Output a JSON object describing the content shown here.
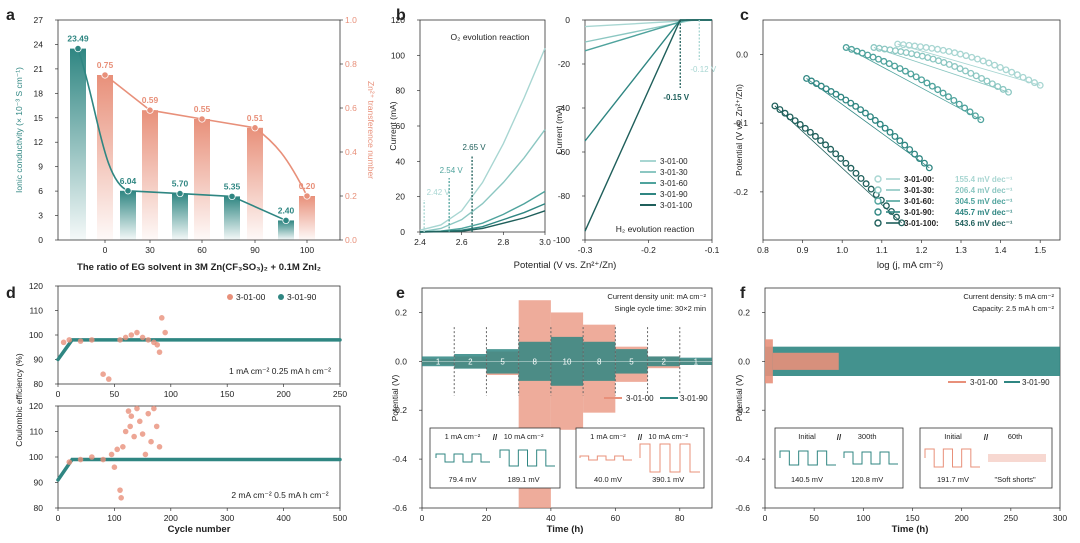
{
  "colors": {
    "teal": "#2f8682",
    "dark": "#1f5f5b",
    "salmon": "#e8907a",
    "mid": "#4fa39d",
    "light": "#8cc7c2",
    "lighter": "#a8d6d2"
  },
  "chart_data": [
    {
      "id": "a",
      "type": "bar",
      "label": "a",
      "xlabel": "The ratio of EG solvent in 3M Zn(CF₃SO₃)₂ + 0.1M ZnI₂",
      "ylabel": "Ionic conductivity (× 10⁻³ S cm⁻¹)",
      "y2label": "Zn²⁺ transference number",
      "categories": [
        "0",
        "30",
        "60",
        "90",
        "100"
      ],
      "xticks": [
        "0",
        "30",
        "60",
        "90",
        "100"
      ],
      "ylim": [
        0,
        27
      ],
      "yticks": [
        0,
        3,
        6,
        9,
        12,
        15,
        18,
        21,
        24,
        27
      ],
      "y2lim": [
        0,
        1.0
      ],
      "y2ticks": [
        "0.0",
        "0.2",
        "0.4",
        "0.6",
        "0.8",
        "1.0"
      ],
      "conductivity": [
        23.49,
        6.04,
        5.7,
        5.35,
        2.4
      ],
      "conductivity_labels": [
        "23.49",
        "6.04",
        "5.70",
        "5.35",
        "2.40"
      ],
      "transference": [
        0.75,
        0.59,
        0.55,
        0.51,
        0.2
      ],
      "transference_labels": [
        "0.75",
        "0.59",
        "0.55",
        "0.51",
        "0.20"
      ]
    },
    {
      "id": "b1",
      "type": "line",
      "label": "b",
      "annotation": "O₂ evolution reaction",
      "xlabel": "Potential (V vs. Zn²⁺/Zn)",
      "ylabel": "Current (mA)",
      "xlim": [
        2.4,
        3.0
      ],
      "xticks": [
        "2.4",
        "2.6",
        "2.8",
        "3.0"
      ],
      "ylim": [
        0,
        120
      ],
      "yticks": [
        0,
        20,
        40,
        60,
        80,
        100,
        120
      ],
      "onsets": [
        {
          "v": 2.42,
          "label": "2.42 V"
        },
        {
          "v": 2.54,
          "label": "2.54 V"
        },
        {
          "v": 2.65,
          "label": "2.65 V"
        }
      ],
      "series": [
        {
          "name": "3-01-00",
          "x": [
            2.4,
            2.5,
            2.6,
            2.7,
            2.8,
            2.9,
            3.0
          ],
          "y": [
            1,
            4,
            12,
            28,
            50,
            76,
            104
          ]
        },
        {
          "name": "3-01-30",
          "x": [
            2.4,
            2.5,
            2.6,
            2.7,
            2.8,
            2.9,
            3.0
          ],
          "y": [
            0,
            2,
            7,
            16,
            28,
            42,
            58
          ]
        },
        {
          "name": "3-01-60",
          "x": [
            2.4,
            2.5,
            2.6,
            2.7,
            2.8,
            2.9,
            3.0
          ],
          "y": [
            0,
            0.5,
            2,
            5,
            10,
            16,
            23
          ]
        },
        {
          "name": "3-01-90",
          "x": [
            2.4,
            2.5,
            2.6,
            2.7,
            2.8,
            2.9,
            3.0
          ],
          "y": [
            0,
            0.3,
            1,
            3,
            7,
            11,
            16
          ]
        },
        {
          "name": "3-01-100",
          "x": [
            2.4,
            2.5,
            2.6,
            2.7,
            2.8,
            2.9,
            3.0
          ],
          "y": [
            0,
            0.2,
            0.5,
            2,
            5,
            8,
            12
          ]
        }
      ]
    },
    {
      "id": "b2",
      "type": "line",
      "annotation": "H₂ evolution reaction",
      "xlabel": "",
      "ylabel": "Current (mA)",
      "xlim": [
        -0.3,
        -0.1
      ],
      "xticks": [
        "-0.3",
        "-0.2",
        "-0.1"
      ],
      "ylim": [
        -100,
        0
      ],
      "yticks": [
        0,
        -20,
        -40,
        -60,
        -80,
        -100
      ],
      "onsets": [
        {
          "v": -0.12,
          "label": "-0.12 V"
        },
        {
          "v": -0.15,
          "label": "-0.15 V"
        }
      ],
      "legend": [
        "3-01-00",
        "3-01-30",
        "3-01-60",
        "3-01-90",
        "3-01-100"
      ],
      "series": [
        {
          "name": "3-01-00",
          "x": [
            -0.3,
            -0.12,
            -0.1
          ],
          "y": [
            -3,
            0,
            0
          ]
        },
        {
          "name": "3-01-30",
          "x": [
            -0.3,
            -0.13,
            -0.1
          ],
          "y": [
            -10,
            0,
            0
          ]
        },
        {
          "name": "3-01-60",
          "x": [
            -0.3,
            -0.14,
            -0.1
          ],
          "y": [
            -14,
            0,
            0
          ]
        },
        {
          "name": "3-01-90",
          "x": [
            -0.3,
            -0.15,
            -0.1
          ],
          "y": [
            -55,
            0,
            0
          ]
        },
        {
          "name": "3-01-100",
          "x": [
            -0.3,
            -0.15,
            -0.1
          ],
          "y": [
            -96,
            0,
            0
          ]
        }
      ]
    },
    {
      "id": "c",
      "type": "scatter",
      "label": "c",
      "xlabel": "log (j, mA cm⁻²)",
      "ylabel": "Potential (V vs. Zn²⁺/Zn)",
      "xlim": [
        0.8,
        1.55
      ],
      "xticks": [
        "0.8",
        "0.9",
        "1.0",
        "1.1",
        "1.2",
        "1.3",
        "1.4",
        "1.5"
      ],
      "ylim": [
        -0.27,
        0.05
      ],
      "yticks": [
        "0.0",
        "-0.1",
        "-0.2"
      ],
      "legend": [
        {
          "name": "3-01-00:",
          "slope": "155.4 mV dec⁻¹"
        },
        {
          "name": "3-01-30:",
          "slope": "206.4 mV dec⁻¹"
        },
        {
          "name": "3-01-60:",
          "slope": "304.5 mV dec⁻¹"
        },
        {
          "name": "3-01-90:",
          "slope": "445.7 mV dec⁻¹"
        },
        {
          "name": "3-01-100:",
          "slope": "543.6 mV dec⁻¹"
        }
      ],
      "series": [
        {
          "name": "3-01-00",
          "x": [
            1.14,
            1.5
          ],
          "y": [
            0.015,
            -0.045
          ]
        },
        {
          "name": "3-01-30",
          "x": [
            1.08,
            1.42
          ],
          "y": [
            0.01,
            -0.055
          ]
        },
        {
          "name": "3-01-60",
          "x": [
            1.01,
            1.35
          ],
          "y": [
            0.01,
            -0.095
          ]
        },
        {
          "name": "3-01-90",
          "x": [
            0.91,
            1.22
          ],
          "y": [
            -0.035,
            -0.165
          ]
        },
        {
          "name": "3-01-100",
          "x": [
            0.83,
            1.15
          ],
          "y": [
            -0.075,
            -0.245
          ]
        }
      ]
    },
    {
      "id": "d",
      "type": "scatter",
      "label": "d",
      "xlabel": "Cycle number",
      "ylabel": "Coulombic efficiency (%)",
      "legend": [
        "3-01-00",
        "3-01-90"
      ],
      "top": {
        "caption": "1 mA cm⁻²  0.25 mA h cm⁻²",
        "xlim": [
          0,
          250
        ],
        "xticks": [
          "0",
          "50",
          "100",
          "150",
          "200",
          "250"
        ],
        "ylim": [
          80,
          120
        ],
        "yticks": [
          "80",
          "90",
          "100",
          "110",
          "120"
        ],
        "salmon_points": [
          [
            5,
            97
          ],
          [
            10,
            98
          ],
          [
            20,
            97.5
          ],
          [
            30,
            98
          ],
          [
            40,
            84
          ],
          [
            45,
            82
          ],
          [
            55,
            98
          ],
          [
            60,
            99
          ],
          [
            65,
            100
          ],
          [
            70,
            101
          ],
          [
            75,
            99
          ],
          [
            80,
            98
          ],
          [
            85,
            97
          ],
          [
            88,
            96
          ],
          [
            90,
            93
          ],
          [
            92,
            107
          ],
          [
            95,
            101
          ]
        ],
        "teal_band": {
          "start": 0,
          "end": 250,
          "value": 98
        }
      },
      "bottom": {
        "caption": "2 mA cm⁻²  0.5 mA h cm⁻²",
        "xlim": [
          0,
          500
        ],
        "xticks": [
          "0",
          "100",
          "200",
          "300",
          "400",
          "500"
        ],
        "ylim": [
          80,
          120
        ],
        "yticks": [
          "80",
          "90",
          "100",
          "110",
          "120"
        ],
        "salmon_points": [
          [
            20,
            98
          ],
          [
            40,
            99
          ],
          [
            60,
            100
          ],
          [
            80,
            99
          ],
          [
            95,
            101
          ],
          [
            100,
            96
          ],
          [
            105,
            103
          ],
          [
            110,
            87
          ],
          [
            112,
            84
          ],
          [
            115,
            104
          ],
          [
            120,
            110
          ],
          [
            125,
            118
          ],
          [
            128,
            112
          ],
          [
            130,
            116
          ],
          [
            135,
            108
          ],
          [
            140,
            119
          ],
          [
            145,
            114
          ],
          [
            150,
            109
          ],
          [
            155,
            101
          ],
          [
            160,
            117
          ],
          [
            165,
            106
          ],
          [
            170,
            119
          ],
          [
            175,
            112
          ],
          [
            180,
            104
          ]
        ],
        "teal_band": {
          "start": 0,
          "end": 500,
          "value": 99
        }
      }
    },
    {
      "id": "e",
      "type": "line",
      "label": "e",
      "xlabel": "Time (h)",
      "ylabel": "Potential (V)",
      "xlim": [
        0,
        90
      ],
      "xticks": [
        "0",
        "20",
        "40",
        "60",
        "80"
      ],
      "ylim": [
        -0.6,
        0.3
      ],
      "yticks": [
        "0.2",
        "0.0",
        "-0.2",
        "-0.4",
        "-0.6"
      ],
      "notes": [
        "Current density unit: mA cm⁻²",
        "Single cycle time: 30×2 min"
      ],
      "steps": [
        "1",
        "2",
        "5",
        "8",
        "10",
        "8",
        "5",
        "2",
        "1"
      ],
      "legend": [
        "3-01-00",
        "3-01-90"
      ],
      "inset1": {
        "left_label": "1 mA cm⁻²",
        "right_label": "10 mA cm⁻²",
        "left_value": "79.4 mV",
        "right_value": "189.1 mV"
      },
      "inset2": {
        "left_label": "1 mA cm⁻²",
        "right_label": "10 mA cm⁻²",
        "left_value": "40.0 mV",
        "right_value": "390.1 mV"
      }
    },
    {
      "id": "f",
      "type": "line",
      "label": "f",
      "xlabel": "Time (h)",
      "ylabel": "Potential (V)",
      "xlim": [
        0,
        300
      ],
      "xticks": [
        "0",
        "50",
        "100",
        "150",
        "200",
        "250",
        "300"
      ],
      "ylim": [
        -0.6,
        0.3
      ],
      "yticks": [
        "0.2",
        "0.0",
        "-0.2",
        "-0.4",
        "-0.6"
      ],
      "notes": [
        "Current density: 5 mA cm⁻²",
        "Capacity: 2.5 mA h cm⁻²"
      ],
      "legend": [
        "3-01-00",
        "3-01-90"
      ],
      "salmon_end": 75,
      "inset1": {
        "left_label": "Initial",
        "right_label": "300th",
        "left_value": "140.5 mV",
        "right_value": "120.8 mV"
      },
      "inset2": {
        "left_label": "Initial",
        "right_label": "60th",
        "left_value": "191.7 mV",
        "right_value": "\"Soft shorts\""
      }
    }
  ]
}
